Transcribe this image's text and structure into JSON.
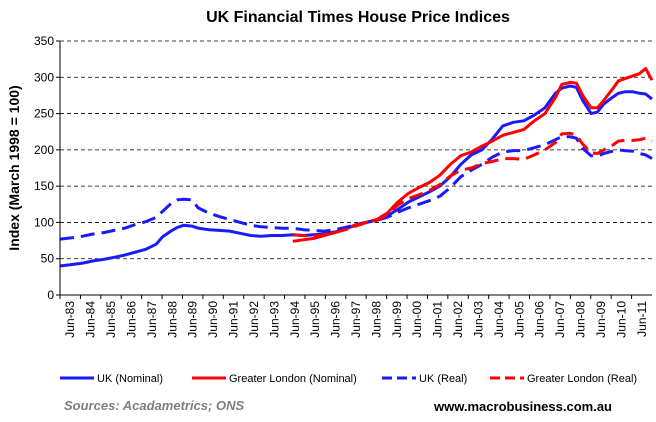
{
  "chart_data": {
    "type": "line",
    "title": "UK Financial  Times House Price Indices",
    "xlabel": "",
    "ylabel": "Index (March 1998 = 100)",
    "ylim": [
      0,
      350
    ],
    "yticks": [
      0,
      50,
      100,
      150,
      200,
      250,
      300,
      350
    ],
    "grid": "horizontal dashed",
    "legend_position": "bottom",
    "x_range_years": [
      1983.42,
      2011.6
    ],
    "x_tick_labels": [
      "Jun-83",
      "Jun-84",
      "Jun-85",
      "Jun-86",
      "Jun-87",
      "Jun-88",
      "Jun-89",
      "Jun-90",
      "Jun-91",
      "Jun-92",
      "Jun-93",
      "Jun-94",
      "Jun-95",
      "Jun-96",
      "Jun-97",
      "Jun-98",
      "Jun-99",
      "Jun-00",
      "Jun-01",
      "Jun-02",
      "Jun-03",
      "Jun-04",
      "Jun-05",
      "Jun-06",
      "Jun-07",
      "Jun-08",
      "Jun-09",
      "Jun-10",
      "Jun-11"
    ],
    "series": [
      {
        "name": "UK (Nominal)",
        "color": "#1a1aff",
        "style": "solid",
        "x": [
          1983.42,
          1984.0,
          1984.5,
          1985.0,
          1985.5,
          1986.0,
          1986.5,
          1987.0,
          1987.5,
          1988.0,
          1988.3,
          1988.7,
          1989.0,
          1989.3,
          1989.7,
          1990.0,
          1990.5,
          1991.0,
          1991.5,
          1992.0,
          1992.5,
          1993.0,
          1993.5,
          1994.0,
          1994.5,
          1995.0,
          1995.5,
          1996.0,
          1996.5,
          1997.0,
          1997.5,
          1998.0,
          1998.5,
          1999.0,
          1999.5,
          2000.0,
          2000.5,
          2001.0,
          2001.5,
          2002.0,
          2002.5,
          2003.0,
          2003.5,
          2004.0,
          2004.5,
          2005.0,
          2005.5,
          2006.0,
          2006.5,
          2007.0,
          2007.3,
          2007.7,
          2008.0,
          2008.3,
          2008.7,
          2009.0,
          2009.3,
          2009.7,
          2010.0,
          2010.3,
          2010.7,
          2011.0,
          2011.3,
          2011.6
        ],
        "values": [
          40,
          42,
          44,
          47,
          49,
          52,
          55,
          59,
          63,
          70,
          80,
          88,
          93,
          96,
          95,
          92,
          90,
          89,
          88,
          85,
          82,
          81,
          82,
          82,
          83,
          82,
          83,
          84,
          87,
          91,
          96,
          100,
          103,
          109,
          118,
          128,
          135,
          142,
          150,
          163,
          180,
          193,
          200,
          215,
          233,
          238,
          240,
          248,
          258,
          278,
          285,
          288,
          286,
          268,
          250,
          252,
          263,
          272,
          278,
          280,
          280,
          278,
          277,
          270
        ]
      },
      {
        "name": "Greater London (Nominal)",
        "color": "#ff0000",
        "style": "solid",
        "x": [
          1994.5,
          1995.0,
          1995.5,
          1996.0,
          1996.5,
          1997.0,
          1997.5,
          1998.0,
          1998.5,
          1999.0,
          1999.5,
          2000.0,
          2000.5,
          2001.0,
          2001.5,
          2002.0,
          2002.5,
          2003.0,
          2003.5,
          2004.0,
          2004.5,
          2005.0,
          2005.5,
          2006.0,
          2006.5,
          2007.0,
          2007.3,
          2007.7,
          2008.0,
          2008.3,
          2008.7,
          2009.0,
          2009.3,
          2009.7,
          2010.0,
          2010.3,
          2010.7,
          2011.0,
          2011.3,
          2011.6
        ],
        "values": [
          74,
          76,
          78,
          82,
          86,
          91,
          97,
          100,
          104,
          113,
          128,
          140,
          148,
          155,
          165,
          180,
          192,
          197,
          205,
          212,
          220,
          224,
          228,
          240,
          250,
          272,
          290,
          293,
          292,
          275,
          258,
          258,
          268,
          283,
          295,
          298,
          302,
          305,
          312,
          296
        ]
      },
      {
        "name": "UK (Real)",
        "color": "#1a1aff",
        "style": "dashed",
        "x": [
          1983.42,
          1984.0,
          1984.5,
          1985.0,
          1985.5,
          1986.0,
          1986.5,
          1987.0,
          1987.5,
          1988.0,
          1988.3,
          1988.7,
          1989.0,
          1989.3,
          1989.7,
          1990.0,
          1990.5,
          1991.0,
          1991.5,
          1992.0,
          1992.5,
          1993.0,
          1993.5,
          1994.0,
          1994.5,
          1995.0,
          1995.5,
          1996.0,
          1996.5,
          1997.0,
          1997.5,
          1998.0,
          1998.5,
          1999.0,
          1999.5,
          2000.0,
          2000.5,
          2001.0,
          2001.5,
          2002.0,
          2002.5,
          2003.0,
          2003.5,
          2004.0,
          2004.5,
          2005.0,
          2005.5,
          2006.0,
          2006.5,
          2007.0,
          2007.3,
          2007.7,
          2008.0,
          2008.3,
          2008.7,
          2009.0,
          2009.3,
          2009.7,
          2010.0,
          2010.3,
          2010.7,
          2011.0,
          2011.3,
          2011.6
        ],
        "values": [
          77,
          79,
          81,
          84,
          86,
          89,
          92,
          97,
          101,
          107,
          115,
          126,
          131,
          132,
          131,
          120,
          113,
          108,
          104,
          100,
          96,
          94,
          93,
          92,
          92,
          90,
          89,
          88,
          90,
          93,
          97,
          100,
          103,
          107,
          114,
          120,
          125,
          130,
          136,
          148,
          163,
          172,
          180,
          190,
          197,
          199,
          199,
          203,
          207,
          214,
          218,
          218,
          216,
          202,
          192,
          191,
          195,
          198,
          200,
          199,
          198,
          195,
          193,
          188
        ]
      },
      {
        "name": "Greater London (Real)",
        "color": "#ff0000",
        "style": "dashed",
        "x": [
          1994.5,
          1995.0,
          1995.5,
          1996.0,
          1996.5,
          1997.0,
          1997.5,
          1998.0,
          1998.5,
          1999.0,
          1999.5,
          2000.0,
          2000.5,
          2001.0,
          2001.5,
          2002.0,
          2002.5,
          2003.0,
          2003.5,
          2004.0,
          2004.5,
          2005.0,
          2005.5,
          2006.0,
          2006.5,
          2007.0,
          2007.3,
          2007.7,
          2008.0,
          2008.3,
          2008.7,
          2009.0,
          2009.3,
          2009.7,
          2010.0,
          2010.3,
          2010.7,
          2011.0,
          2011.3,
          2011.6
        ],
        "values": [
          83,
          82,
          81,
          83,
          86,
          90,
          95,
          100,
          103,
          111,
          124,
          133,
          138,
          144,
          152,
          164,
          172,
          175,
          181,
          184,
          188,
          188,
          187,
          193,
          200,
          210,
          222,
          223,
          220,
          208,
          196,
          195,
          200,
          206,
          212,
          213,
          213,
          214,
          216,
          212
        ]
      }
    ],
    "sources_text": "Sources:  Acadametrics;  ONS",
    "website_text": "www.macrobusiness.com.au"
  }
}
